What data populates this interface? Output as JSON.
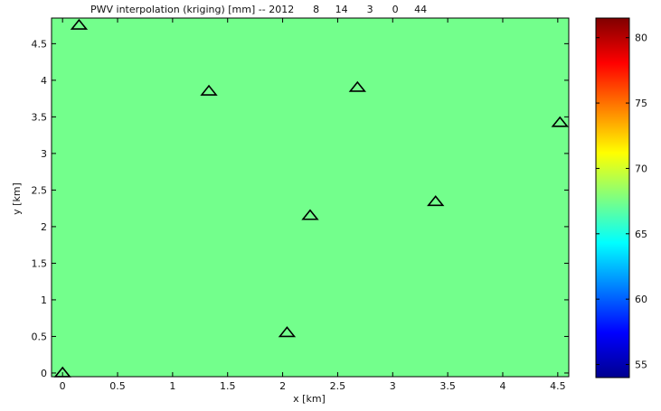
{
  "chart_data": {
    "type": "heatmap",
    "title": "PWV interpolation (kriging) [mm] -- 2012      8     14      3      0     44",
    "xlabel": "x [km]",
    "ylabel": "y [km]",
    "xlim": [
      -0.1,
      4.6
    ],
    "ylim": [
      -0.05,
      4.85
    ],
    "x_ticks": [
      0,
      0.5,
      1,
      1.5,
      2,
      2.5,
      3,
      3.5,
      4,
      4.5
    ],
    "x_tick_labels": [
      "0",
      "0.5",
      "1",
      "1.5",
      "2",
      "2.5",
      "3",
      "3.5",
      "4",
      "4.5"
    ],
    "y_ticks": [
      0,
      0.5,
      1,
      1.5,
      2,
      2.5,
      3,
      3.5,
      4,
      4.5
    ],
    "y_tick_labels": [
      "0",
      "0.5",
      "1",
      "1.5",
      "2",
      "2.5",
      "3",
      "3.5",
      "4",
      "4.5"
    ],
    "field_value": 67,
    "field_color": "#73ff8c",
    "colorbar": {
      "clim": [
        54,
        81.5
      ],
      "ticks": [
        55,
        60,
        65,
        70,
        75,
        80
      ],
      "tick_labels": [
        "55",
        "60",
        "65",
        "70",
        "75",
        "80"
      ],
      "colormap": "jet"
    },
    "stations": [
      {
        "x": 0.0,
        "y": 0.0
      },
      {
        "x": 0.15,
        "y": 4.75
      },
      {
        "x": 1.33,
        "y": 3.85
      },
      {
        "x": 2.68,
        "y": 3.9
      },
      {
        "x": 4.52,
        "y": 3.42
      },
      {
        "x": 3.39,
        "y": 2.34
      },
      {
        "x": 2.25,
        "y": 2.15
      },
      {
        "x": 2.04,
        "y": 0.55
      }
    ],
    "marker": "triangle",
    "marker_color": "#000000"
  }
}
